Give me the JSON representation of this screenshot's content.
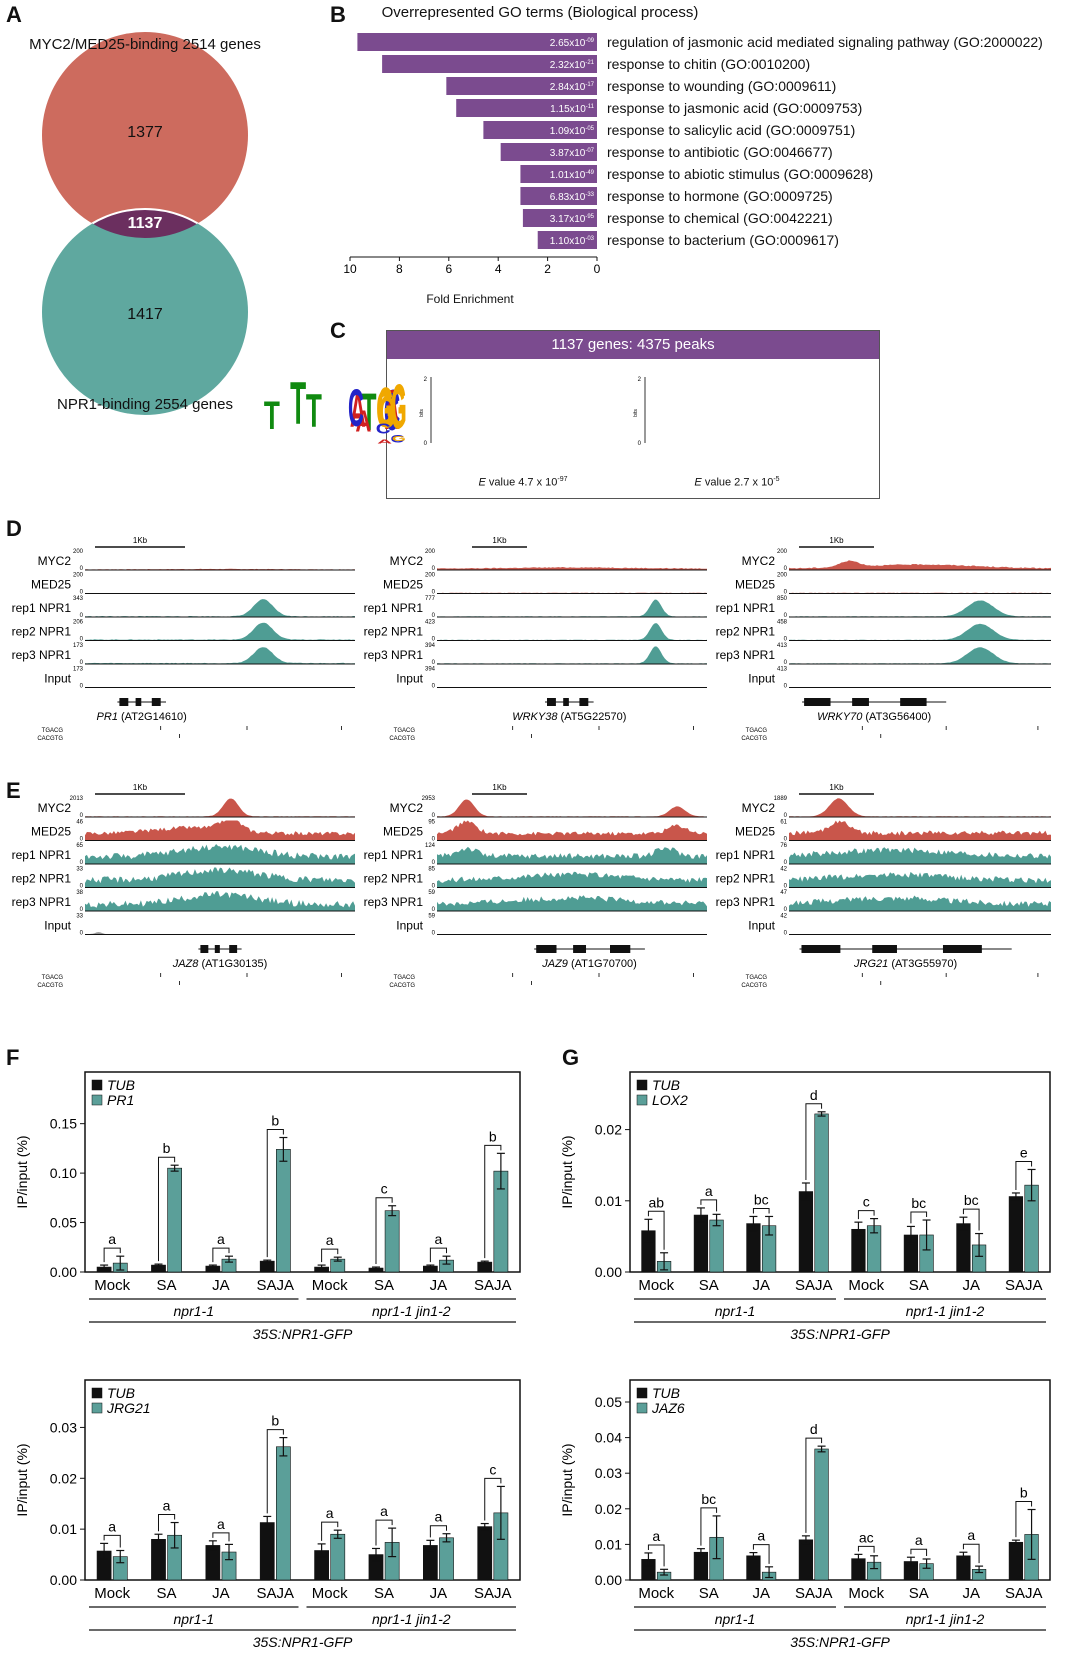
{
  "panels": {
    "A": "A",
    "B": "B",
    "C": "C",
    "D": "D",
    "E": "E",
    "F": "F",
    "G": "G"
  },
  "venn": {
    "top_label": "MYC2/MED25-binding 2514 genes",
    "bottom_label": "NPR1-binding 2554 genes",
    "top_only": "1377",
    "overlap": "1137",
    "bottom_only": "1417",
    "colors": {
      "top": "#cd6b5e",
      "bottom": "#5fa89f",
      "overlap": "#6b2f5f"
    }
  },
  "go": {
    "title": "Overrepresented GO terms (Biological process)",
    "xlabel": "Fold Enrichment",
    "xticks": [
      "10",
      "8",
      "6",
      "4",
      "2",
      "0"
    ],
    "bar_color": "#7b4b8f",
    "terms": [
      {
        "label": "regulation of jasmonic acid mediated signaling pathway (GO:2000022)",
        "fold": 9.7,
        "e_base": "2.65x10",
        "e_exp": "-09"
      },
      {
        "label": "response to chitin (GO:0010200)",
        "fold": 8.7,
        "e_base": "2.32x10",
        "e_exp": "-21"
      },
      {
        "label": "response to wounding (GO:0009611)",
        "fold": 6.1,
        "e_base": "2.84x10",
        "e_exp": "-17"
      },
      {
        "label": "response to jasmonic acid (GO:0009753)",
        "fold": 5.7,
        "e_base": "1.15x10",
        "e_exp": "-11"
      },
      {
        "label": "response to salicylic acid (GO:0009751)",
        "fold": 4.6,
        "e_base": "1.09x10",
        "e_exp": "-05"
      },
      {
        "label": "response to antibiotic (GO:0046677)",
        "fold": 3.9,
        "e_base": "3.87x10",
        "e_exp": "-07"
      },
      {
        "label": "response to abiotic stimulus (GO:0009628)",
        "fold": 3.1,
        "e_base": "1.01x10",
        "e_exp": "-49"
      },
      {
        "label": "response to hormone (GO:0009725)",
        "fold": 3.1,
        "e_base": "6.83x10",
        "e_exp": "-33"
      },
      {
        "label": "response to chemical (GO:0042221)",
        "fold": 3.0,
        "e_base": "3.17x10",
        "e_exp": "-95"
      },
      {
        "label": "response to bacterium (GO:0009617)",
        "fold": 2.4,
        "e_base": "1.10x10",
        "e_exp": "-03"
      }
    ]
  },
  "motif": {
    "header": "1137 genes: 4375 peaks",
    "bits_label": "bits",
    "ytick_top": "2",
    "ytick_bottom": "0",
    "motif1": {
      "e_label": "E",
      "e_text": " value 4.7 x 10",
      "e_exp": "-97",
      "letters": [
        "C",
        "A",
        "C",
        "G",
        "T",
        "G"
      ]
    },
    "motif2": {
      "e_label": "E",
      "e_text": " value 2.7 x 10",
      "e_exp": "-5",
      "letters": [
        "T",
        "G",
        "A",
        "T",
        "G",
        "A",
        "C",
        "G",
        "T"
      ]
    }
  },
  "tracks": {
    "scale_label": "1Kb",
    "track_names": [
      "MYC2",
      "MED25",
      "rep1 NPR1",
      "rep2 NPR1",
      "rep3 NPR1",
      "Input"
    ],
    "motif_names": [
      "TGACG",
      "CACGTG"
    ],
    "D": [
      {
        "gene": "PR1",
        "locus": " (AT2G14610)",
        "scales": [
          "200",
          "200",
          "343",
          "206",
          "173",
          "173"
        ]
      },
      {
        "gene": "WRKY38",
        "locus": " (AT5G22570)",
        "scales": [
          "200",
          "200",
          "777",
          "423",
          "394",
          "394"
        ]
      },
      {
        "gene": "WRKY70",
        "locus": " (AT3G56400)",
        "scales": [
          "200",
          "200",
          "850",
          "458",
          "413",
          "413"
        ]
      }
    ],
    "E": [
      {
        "gene": "JAZ8",
        "locus": " (AT1G30135)",
        "scales": [
          "2013",
          "46",
          "65",
          "33",
          "38",
          "33"
        ]
      },
      {
        "gene": "JAZ9",
        "locus": " (AT1G70700)",
        "scales": [
          "2953",
          "95",
          "124",
          "85",
          "59",
          "59"
        ]
      },
      {
        "gene": "JRG21",
        "locus": " (AT3G55970)",
        "scales": [
          "1889",
          "61",
          "76",
          "42",
          "47",
          "42"
        ]
      }
    ],
    "zero": "0"
  },
  "chart_data": [
    {
      "type": "bar",
      "id": "F1",
      "ylabel": "IP/input (%)",
      "yticks": [
        "0.00",
        "0.05",
        "0.10",
        "0.15"
      ],
      "ylim": [
        0,
        0.18
      ],
      "categories": [
        "Mock",
        "SA",
        "JA",
        "SAJA",
        "Mock",
        "SA",
        "JA",
        "SAJA"
      ],
      "group_labels": [
        "npr1-1",
        "npr1-1 jin1-2"
      ],
      "bottom_label": "35S:NPR1-GFP",
      "series": [
        {
          "name": "TUB",
          "values": [
            0.005,
            0.007,
            0.006,
            0.011,
            0.005,
            0.004,
            0.006,
            0.01
          ],
          "err": [
            0.002,
            0.001,
            0.001,
            0.001,
            0.002,
            0.001,
            0.001,
            0.001
          ]
        },
        {
          "name": "PR1",
          "values": [
            0.009,
            0.105,
            0.013,
            0.124,
            0.013,
            0.062,
            0.012,
            0.102
          ],
          "err": [
            0.007,
            0.003,
            0.003,
            0.012,
            0.002,
            0.005,
            0.004,
            0.018
          ]
        }
      ],
      "letters": [
        "a",
        "b",
        "a",
        "b",
        "a",
        "c",
        "a",
        "b"
      ]
    },
    {
      "type": "bar",
      "id": "G1",
      "ylabel": "IP/input (%)",
      "yticks": [
        "0.00",
        "0.01",
        "0.02"
      ],
      "ylim": [
        0,
        0.025
      ],
      "categories": [
        "Mock",
        "SA",
        "JA",
        "SAJA",
        "Mock",
        "SA",
        "JA",
        "SAJA"
      ],
      "group_labels": [
        "npr1-1",
        "npr1-1 jin1-2"
      ],
      "bottom_label": "35S:NPR1-GFP",
      "series": [
        {
          "name": "TUB",
          "values": [
            0.0058,
            0.008,
            0.0068,
            0.0113,
            0.006,
            0.0052,
            0.0068,
            0.0106
          ],
          "err": [
            0.0016,
            0.001,
            0.001,
            0.0012,
            0.001,
            0.0012,
            0.0009,
            0.0005
          ]
        },
        {
          "name": "LOX2",
          "values": [
            0.0015,
            0.0073,
            0.0065,
            0.0222,
            0.0065,
            0.0052,
            0.0038,
            0.0122
          ],
          "err": [
            0.0012,
            0.0008,
            0.0013,
            0.0003,
            0.001,
            0.0021,
            0.0016,
            0.0022
          ]
        }
      ],
      "letters": [
        "ab",
        "a",
        "bc",
        "d",
        "c",
        "bc",
        "bc",
        "e"
      ]
    },
    {
      "type": "bar",
      "id": "F2",
      "ylabel": "IP/input (%)",
      "yticks": [
        "0.00",
        "0.01",
        "0.02",
        "0.03"
      ],
      "ylim": [
        0,
        0.035
      ],
      "categories": [
        "Mock",
        "SA",
        "JA",
        "SAJA",
        "Mock",
        "SA",
        "JA",
        "SAJA"
      ],
      "group_labels": [
        "npr1-1",
        "npr1-1 jin1-2"
      ],
      "bottom_label": "35S:NPR1-GFP",
      "series": [
        {
          "name": "TUB",
          "values": [
            0.0057,
            0.008,
            0.0068,
            0.0113,
            0.0058,
            0.005,
            0.0068,
            0.0105
          ],
          "err": [
            0.0015,
            0.001,
            0.0009,
            0.0012,
            0.0013,
            0.0012,
            0.001,
            0.0006
          ]
        },
        {
          "name": "JRG21",
          "values": [
            0.0046,
            0.0088,
            0.0055,
            0.0262,
            0.009,
            0.0074,
            0.0083,
            0.0132
          ],
          "err": [
            0.0012,
            0.0025,
            0.0015,
            0.0018,
            0.0008,
            0.0028,
            0.0008,
            0.0052
          ]
        }
      ],
      "letters": [
        "a",
        "a",
        "a",
        "b",
        "a",
        "a",
        "a",
        "c"
      ]
    },
    {
      "type": "bar",
      "id": "G2",
      "ylabel": "IP/input (%)",
      "yticks": [
        "0.00",
        "0.01",
        "0.02",
        "0.03",
        "0.04",
        "0.05"
      ],
      "ylim": [
        0,
        0.05
      ],
      "categories": [
        "Mock",
        "SA",
        "JA",
        "SAJA",
        "Mock",
        "SA",
        "JA",
        "SAJA"
      ],
      "group_labels": [
        "npr1-1",
        "npr1-1 jin1-2"
      ],
      "bottom_label": "35S:NPR1-GFP",
      "series": [
        {
          "name": "TUB",
          "values": [
            0.0058,
            0.0078,
            0.0068,
            0.0113,
            0.006,
            0.0052,
            0.0068,
            0.0106
          ],
          "err": [
            0.0018,
            0.001,
            0.0009,
            0.0011,
            0.0012,
            0.0012,
            0.001,
            0.0006
          ]
        },
        {
          "name": "JAZ6",
          "values": [
            0.0022,
            0.012,
            0.0022,
            0.0368,
            0.005,
            0.0046,
            0.003,
            0.0128
          ],
          "err": [
            0.0008,
            0.006,
            0.0015,
            0.0008,
            0.0018,
            0.0013,
            0.0009,
            0.007
          ]
        }
      ],
      "letters": [
        "a",
        "bc",
        "a",
        "d",
        "ac",
        "a",
        "a",
        "b"
      ]
    }
  ]
}
